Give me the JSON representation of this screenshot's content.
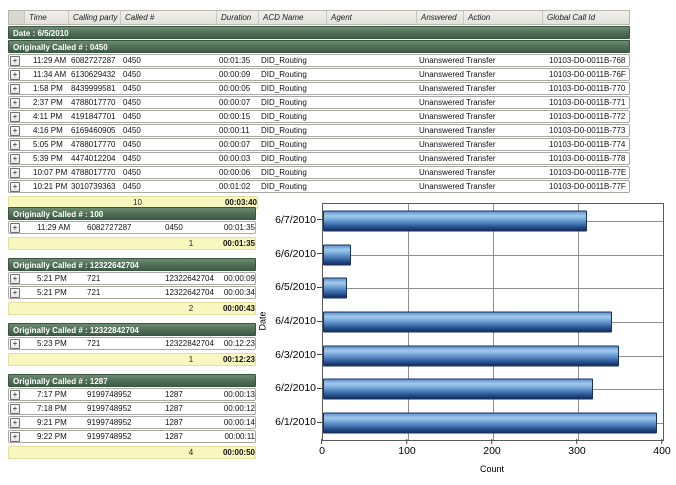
{
  "report": {
    "columns": [
      "Time",
      "Calling party #",
      "Called #",
      "Duration",
      "ACD Name",
      "Agent",
      "Answered",
      "Action",
      "Global Call Id"
    ],
    "date_header": "Date : 6/5/2010",
    "main_group": {
      "header": "Originally Called # : 0450",
      "rows": [
        {
          "time": "11:29 AM",
          "calling": "6082727287",
          "called": "0450",
          "duration": "00:01:35",
          "acd": "DID_Routing",
          "agent": "",
          "answered": "Unanswered",
          "action": "Transfer",
          "global_id": "10103-D0-0011B-768"
        },
        {
          "time": "11:34 AM",
          "calling": "6130629432",
          "called": "0450",
          "duration": "00:00:09",
          "acd": "DID_Routing",
          "agent": "",
          "answered": "Unanswered",
          "action": "Transfer",
          "global_id": "10103-D0-0011B-76F"
        },
        {
          "time": "1:58 PM",
          "calling": "8439999581",
          "called": "0450",
          "duration": "00:00:05",
          "acd": "DID_Routing",
          "agent": "",
          "answered": "Unanswered",
          "action": "Transfer",
          "global_id": "10103-D0-0011B-770"
        },
        {
          "time": "2:37 PM",
          "calling": "4788017770",
          "called": "0450",
          "duration": "00:00:07",
          "acd": "DID_Routing",
          "agent": "",
          "answered": "Unanswered",
          "action": "Transfer",
          "global_id": "10103-D0-0011B-771"
        },
        {
          "time": "4:11 PM",
          "calling": "4191847701",
          "called": "0450",
          "duration": "00:00:15",
          "acd": "DID_Routing",
          "agent": "",
          "answered": "Unanswered",
          "action": "Transfer",
          "global_id": "10103-D0-0011B-772"
        },
        {
          "time": "4:16 PM",
          "calling": "6169460905",
          "called": "0450",
          "duration": "00:00:11",
          "acd": "DID_Routing",
          "agent": "",
          "answered": "Unanswered",
          "action": "Transfer",
          "global_id": "10103-D0-0011B-773"
        },
        {
          "time": "5:05 PM",
          "calling": "4788017770",
          "called": "0450",
          "duration": "00:00:07",
          "acd": "DID_Routing",
          "agent": "",
          "answered": "Unanswered",
          "action": "Transfer",
          "global_id": "10103-D0-0011B-774"
        },
        {
          "time": "5:39 PM",
          "calling": "4474012204",
          "called": "0450",
          "duration": "00:00:03",
          "acd": "DID_Routing",
          "agent": "",
          "answered": "Unanswered",
          "action": "Transfer",
          "global_id": "10103-D0-0011B-778"
        },
        {
          "time": "10:07 PM",
          "calling": "4788017770",
          "called": "0450",
          "duration": "00:00:06",
          "acd": "DID_Routing",
          "agent": "",
          "answered": "Unanswered",
          "action": "Transfer",
          "global_id": "10103-D0-0011B-77E"
        },
        {
          "time": "10:21 PM",
          "calling": "3010739363",
          "called": "0450",
          "duration": "00:01:02",
          "acd": "DID_Routing",
          "agent": "",
          "answered": "Unanswered",
          "action": "Transfer",
          "global_id": "10103-D0-0011B-77F"
        }
      ],
      "summary": {
        "count": "10",
        "duration": "00:03:40"
      }
    },
    "groups": [
      {
        "header": "Originally Called # : 100",
        "rows": [
          {
            "time": "11:29 AM",
            "calling": "6082727287",
            "called": "0450",
            "duration": "00:01:35"
          }
        ],
        "summary": {
          "count": "1",
          "duration": "00:01:35"
        }
      },
      {
        "header": "Originally Called # : 12322642704",
        "rows": [
          {
            "time": "5:21 PM",
            "calling": "721",
            "called": "12322642704",
            "duration": "00:00:09"
          },
          {
            "time": "5:21 PM",
            "calling": "721",
            "called": "12322642704",
            "duration": "00:00:34"
          }
        ],
        "summary": {
          "count": "2",
          "duration": "00:00:43"
        }
      },
      {
        "header": "Originally Called # : 12322842704",
        "rows": [
          {
            "time": "5:23 PM",
            "calling": "721",
            "called": "12322842704",
            "duration": "00:12:23"
          }
        ],
        "summary": {
          "count": "1",
          "duration": "00:12:23"
        }
      },
      {
        "header": "Originally Called # : 1287",
        "rows": [
          {
            "time": "7:17 PM",
            "calling": "9199748952",
            "called": "1287",
            "duration": "00:00:13"
          },
          {
            "time": "7:18 PM",
            "calling": "9199748952",
            "called": "1287",
            "duration": "00:00:12"
          },
          {
            "time": "9:21 PM",
            "calling": "9199748952",
            "called": "1287",
            "duration": "00:00:14"
          },
          {
            "time": "9:22 PM",
            "calling": "9199748952",
            "called": "1287",
            "duration": "00:00:11"
          }
        ],
        "summary": {
          "count": "4",
          "duration": "00:00:50"
        }
      }
    ]
  },
  "icons": {
    "expand_row": "plus-box"
  },
  "colors": {
    "group_header_green": "#4a6a50",
    "summary_yellow": "#f9f7c0",
    "bar_blue": "#4f81bd",
    "bar_dark_edge": "#15335f",
    "gridline_gray": "#8f8f8f"
  },
  "chart_data": {
    "type": "bar",
    "orientation": "horizontal",
    "title": "",
    "categories": [
      "6/7/2010",
      "6/6/2010",
      "6/5/2010",
      "6/4/2010",
      "6/3/2010",
      "6/2/2010",
      "6/1/2010"
    ],
    "values": [
      310,
      33,
      28,
      340,
      348,
      318,
      393
    ],
    "xlabel": "Count",
    "ylabel": "Date",
    "xlim": [
      0,
      400
    ],
    "xticks": [
      0,
      100,
      200,
      300,
      400
    ],
    "grid": true,
    "legend": false
  }
}
